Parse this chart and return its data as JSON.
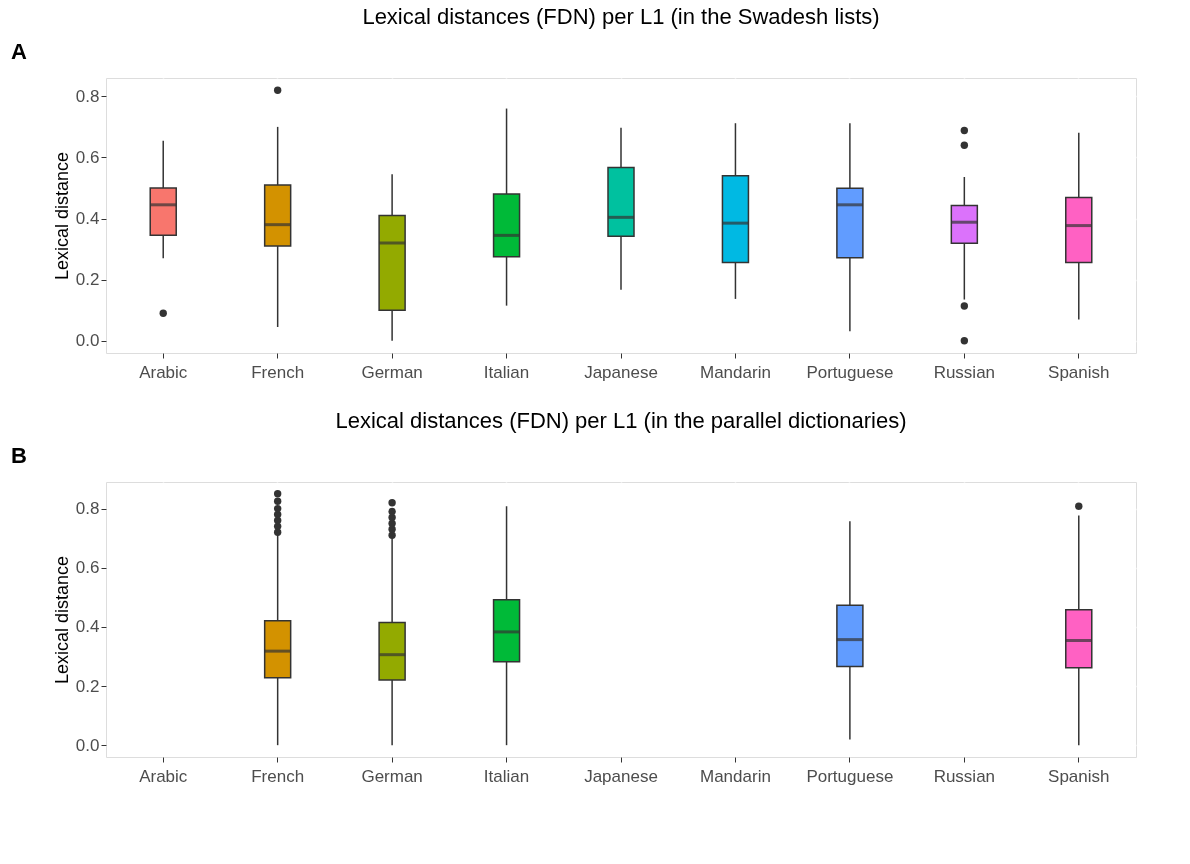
{
  "chart_data": [
    {
      "type": "box",
      "title": "Lexical distances (FDN) per L1 (in the Swadesh lists)",
      "ylabel": "Lexical distance",
      "annotations": [
        "A"
      ],
      "categories": [
        "Arabic",
        "French",
        "German",
        "Italian",
        "Japanese",
        "Mandarin",
        "Portuguese",
        "Russian",
        "Spanish"
      ],
      "colors": [
        "#f8766d",
        "#d39200",
        "#93aa00",
        "#00ba38",
        "#00c19f",
        "#00b9e3",
        "#619cff",
        "#db72fb",
        "#ff61c3"
      ],
      "boxes": [
        {
          "low": 0.27,
          "q1": 0.345,
          "median": 0.445,
          "q3": 0.5,
          "high": 0.655,
          "outliers": [
            0.09
          ]
        },
        {
          "low": 0.045,
          "q1": 0.31,
          "median": 0.38,
          "q3": 0.51,
          "high": 0.7,
          "outliers": [
            0.82
          ]
        },
        {
          "low": 0.0,
          "q1": 0.1,
          "median": 0.32,
          "q3": 0.41,
          "high": 0.545
        },
        {
          "low": 0.115,
          "q1": 0.275,
          "median": 0.345,
          "q3": 0.48,
          "high": 0.76
        },
        {
          "low": 0.167,
          "q1": 0.342,
          "median": 0.404,
          "q3": 0.567,
          "high": 0.697
        },
        {
          "low": 0.137,
          "q1": 0.256,
          "median": 0.385,
          "q3": 0.54,
          "high": 0.712
        },
        {
          "low": 0.031,
          "q1": 0.272,
          "median": 0.445,
          "q3": 0.499,
          "high": 0.712
        },
        {
          "low": 0.135,
          "q1": 0.319,
          "median": 0.388,
          "q3": 0.443,
          "high": 0.536,
          "outliers": [
            0.688,
            0.64,
            0.114,
            0.0
          ]
        },
        {
          "low": 0.07,
          "q1": 0.256,
          "median": 0.377,
          "q3": 0.469,
          "high": 0.681
        }
      ],
      "ylim": [
        -0.04,
        0.86
      ],
      "yticks": [
        {
          "value": 0,
          "label": "0.0"
        },
        {
          "value": 0.2,
          "label": "0.2"
        },
        {
          "value": 0.4,
          "label": "0.4"
        },
        {
          "value": 0.6,
          "label": "0.6"
        },
        {
          "value": 0.8,
          "label": "0.8"
        }
      ],
      "grid": true
    },
    {
      "type": "box",
      "title": "Lexical distances (FDN) per L1 (in the parallel dictionaries)",
      "ylabel": "Lexical distance",
      "annotations": [
        "B"
      ],
      "categories": [
        "Arabic",
        "French",
        "German",
        "Italian",
        "Japanese",
        "Mandarin",
        "Portuguese",
        "Russian",
        "Spanish"
      ],
      "colors": [
        "#f8766d",
        "#d39200",
        "#93aa00",
        "#00ba38",
        "#00c19f",
        "#00b9e3",
        "#619cff",
        "#db72fb",
        "#ff61c3"
      ],
      "boxes": [
        null,
        {
          "low": 0.0,
          "q1": 0.228,
          "median": 0.318,
          "q3": 0.421,
          "high": 0.717,
          "outliers": [
            0.72,
            0.74,
            0.76,
            0.78,
            0.8,
            0.825,
            0.85
          ]
        },
        {
          "low": 0.0,
          "q1": 0.22,
          "median": 0.306,
          "q3": 0.415,
          "high": 0.7,
          "outliers": [
            0.71,
            0.73,
            0.75,
            0.77,
            0.79,
            0.82
          ]
        },
        {
          "low": 0.0,
          "q1": 0.282,
          "median": 0.383,
          "q3": 0.492,
          "high": 0.808
        },
        null,
        null,
        {
          "low": 0.019,
          "q1": 0.266,
          "median": 0.357,
          "q3": 0.473,
          "high": 0.757
        },
        null,
        {
          "low": 0.0,
          "q1": 0.262,
          "median": 0.354,
          "q3": 0.458,
          "high": 0.777,
          "outliers": [
            0.808
          ]
        }
      ],
      "ylim": [
        -0.04,
        0.89
      ],
      "yticks": [
        {
          "value": 0,
          "label": "0.0"
        },
        {
          "value": 0.2,
          "label": "0.2"
        },
        {
          "value": 0.4,
          "label": "0.4"
        },
        {
          "value": 0.6,
          "label": "0.6"
        },
        {
          "value": 0.8,
          "label": "0.8"
        }
      ],
      "grid": true
    }
  ]
}
